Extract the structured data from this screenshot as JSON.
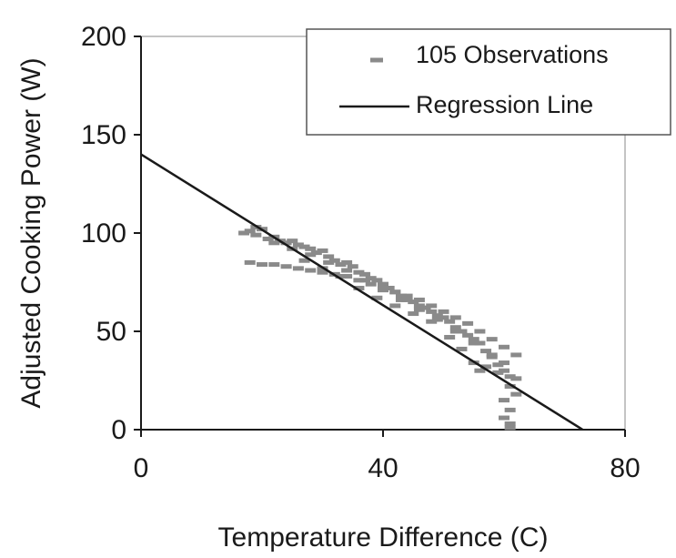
{
  "chart_data": {
    "type": "scatter",
    "xlabel": "Temperature Difference (C)",
    "ylabel": "Adjusted Cooking Power (W)",
    "xlim": [
      0,
      80
    ],
    "ylim": [
      0,
      200
    ],
    "x_ticks": [
      "0",
      "40",
      "80"
    ],
    "y_ticks": [
      "0",
      "50",
      "100",
      "150",
      "200"
    ],
    "grid": false,
    "legend_position": "top-right",
    "series": [
      {
        "name": "105 Observations",
        "kind": "scatter",
        "marker": "dash",
        "color": "#8a8a8a",
        "points": [
          [
            17,
            100
          ],
          [
            18,
            101
          ],
          [
            19,
            103
          ],
          [
            19,
            99
          ],
          [
            20,
            102
          ],
          [
            21,
            97
          ],
          [
            22,
            95
          ],
          [
            22,
            98
          ],
          [
            23,
            96
          ],
          [
            24,
            95
          ],
          [
            25,
            96
          ],
          [
            26,
            94
          ],
          [
            27,
            93
          ],
          [
            28,
            92
          ],
          [
            29,
            90
          ],
          [
            30,
            91
          ],
          [
            31,
            88
          ],
          [
            32,
            86
          ],
          [
            33,
            84
          ],
          [
            34,
            85
          ],
          [
            35,
            83
          ],
          [
            36,
            80
          ],
          [
            37,
            79
          ],
          [
            38,
            77
          ],
          [
            39,
            76
          ],
          [
            40,
            74
          ],
          [
            41,
            72
          ],
          [
            42,
            70
          ],
          [
            43,
            68
          ],
          [
            44,
            66
          ],
          [
            45,
            65
          ],
          [
            46,
            63
          ],
          [
            47,
            62
          ],
          [
            48,
            60
          ],
          [
            49,
            58
          ],
          [
            50,
            57
          ],
          [
            51,
            55
          ],
          [
            52,
            52
          ],
          [
            53,
            50
          ],
          [
            54,
            48
          ],
          [
            55,
            46
          ],
          [
            56,
            44
          ],
          [
            57,
            40
          ],
          [
            58,
            37
          ],
          [
            59,
            33
          ],
          [
            60,
            30
          ],
          [
            61,
            27
          ],
          [
            62,
            26
          ],
          [
            61,
            22
          ],
          [
            62,
            18
          ],
          [
            60,
            15
          ],
          [
            61,
            10
          ],
          [
            60,
            6
          ],
          [
            61,
            3
          ],
          [
            61,
            1
          ],
          [
            18,
            85
          ],
          [
            20,
            84
          ],
          [
            22,
            84
          ],
          [
            24,
            83
          ],
          [
            26,
            82
          ],
          [
            28,
            81
          ],
          [
            30,
            80
          ],
          [
            32,
            79
          ],
          [
            34,
            78
          ],
          [
            36,
            76
          ],
          [
            38,
            74
          ],
          [
            40,
            72
          ],
          [
            42,
            70
          ],
          [
            44,
            68
          ],
          [
            46,
            66
          ],
          [
            48,
            63
          ],
          [
            50,
            60
          ],
          [
            52,
            57
          ],
          [
            54,
            54
          ],
          [
            56,
            50
          ],
          [
            58,
            46
          ],
          [
            60,
            42
          ],
          [
            62,
            38
          ],
          [
            25,
            92
          ],
          [
            28,
            89
          ],
          [
            31,
            85
          ],
          [
            34,
            81
          ],
          [
            37,
            76
          ],
          [
            40,
            71
          ],
          [
            43,
            66
          ],
          [
            46,
            61
          ],
          [
            49,
            56
          ],
          [
            52,
            50
          ],
          [
            55,
            44
          ],
          [
            58,
            38
          ],
          [
            60,
            34
          ],
          [
            59,
            29
          ],
          [
            57,
            32
          ],
          [
            56,
            30
          ],
          [
            55,
            34
          ],
          [
            53,
            41
          ],
          [
            51,
            47
          ],
          [
            48,
            55
          ],
          [
            45,
            59
          ],
          [
            42,
            63
          ],
          [
            39,
            67
          ],
          [
            36,
            72
          ],
          [
            33,
            78
          ],
          [
            30,
            82
          ],
          [
            27,
            86
          ]
        ]
      },
      {
        "name": "Regression Line",
        "kind": "line",
        "color": "#1a1a1a",
        "points": [
          [
            0,
            140
          ],
          [
            73,
            0
          ]
        ]
      }
    ]
  }
}
